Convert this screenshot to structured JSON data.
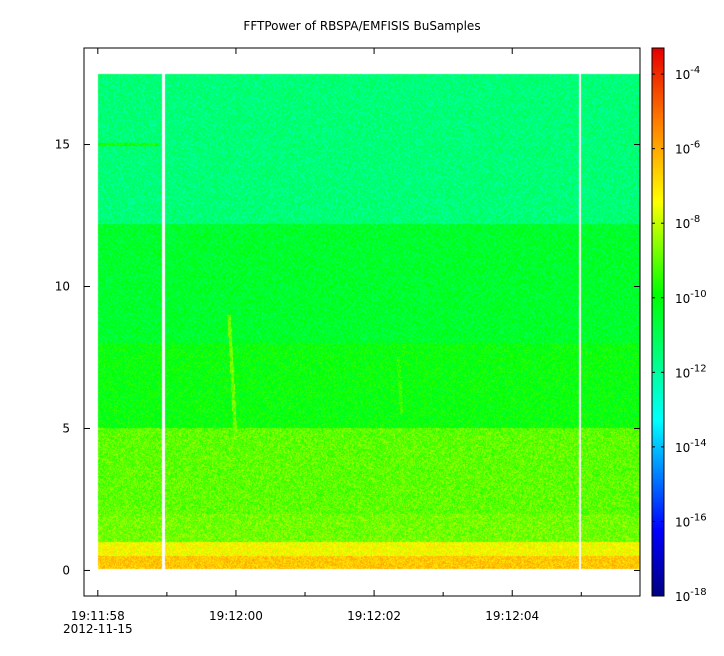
{
  "chart_data": {
    "type": "heatmap",
    "title": "FFTPower of RBSPA/EMFISIS  BuSamples",
    "xlabel": "",
    "ylabel": "",
    "x_ticks": [
      {
        "t": 0.0,
        "label": "19:11:58",
        "sublabel": "2012-11-15"
      },
      {
        "t": 2.0,
        "label": "19:12:00"
      },
      {
        "t": 4.0,
        "label": "19:12:02"
      },
      {
        "t": 6.0,
        "label": "19:12:04"
      }
    ],
    "x_minor_ticks": [
      1.0,
      3.0,
      5.0,
      7.0
    ],
    "xlim": [
      -0.2,
      7.85
    ],
    "y_ticks": [
      0,
      5,
      10,
      15
    ],
    "ylim": [
      -0.9,
      18.4
    ],
    "data_extent": {
      "t": [
        0.0,
        7.85
      ],
      "y": [
        0.05,
        17.5
      ]
    },
    "data_gaps_t": [
      0.95,
      6.98
    ],
    "colorbar": {
      "scale": "log",
      "range_exponents": [
        -18,
        -3.3
      ],
      "tick_exponents": [
        -18,
        -16,
        -14,
        -12,
        -10,
        -8,
        -6,
        -4
      ],
      "tick_base": "10"
    },
    "power_bands": [
      {
        "y_from": 0.0,
        "y_to": 0.5,
        "log_power": -6.5
      },
      {
        "y_from": 0.5,
        "y_to": 1.0,
        "log_power": -7.4
      },
      {
        "y_from": 1.0,
        "y_to": 2.0,
        "log_power": -8.8
      },
      {
        "y_from": 2.0,
        "y_to": 5.0,
        "log_power": -9.0
      },
      {
        "y_from": 5.0,
        "y_to": 8.0,
        "log_power": -10.0
      },
      {
        "y_from": 8.0,
        "y_to": 12.2,
        "log_power": -10.5
      },
      {
        "y_from": 12.2,
        "y_to": 17.5,
        "log_power": -11.5
      }
    ],
    "features": [
      {
        "name": "",
        "t_start": 1.9,
        "y_start": 9.0,
        "t_end": 2.0,
        "y_end": 4.5,
        "log_power": -8.8
      },
      {
        "name": "",
        "t_start": 4.35,
        "y_start": 7.5,
        "t_end": 4.4,
        "y_end": 5.5,
        "log_power": -9.3
      },
      {
        "name": "",
        "t_start": 0.0,
        "y_start": 15.0,
        "t_end": 0.9,
        "y_end": 15.0,
        "log_power": -9.8
      }
    ]
  }
}
